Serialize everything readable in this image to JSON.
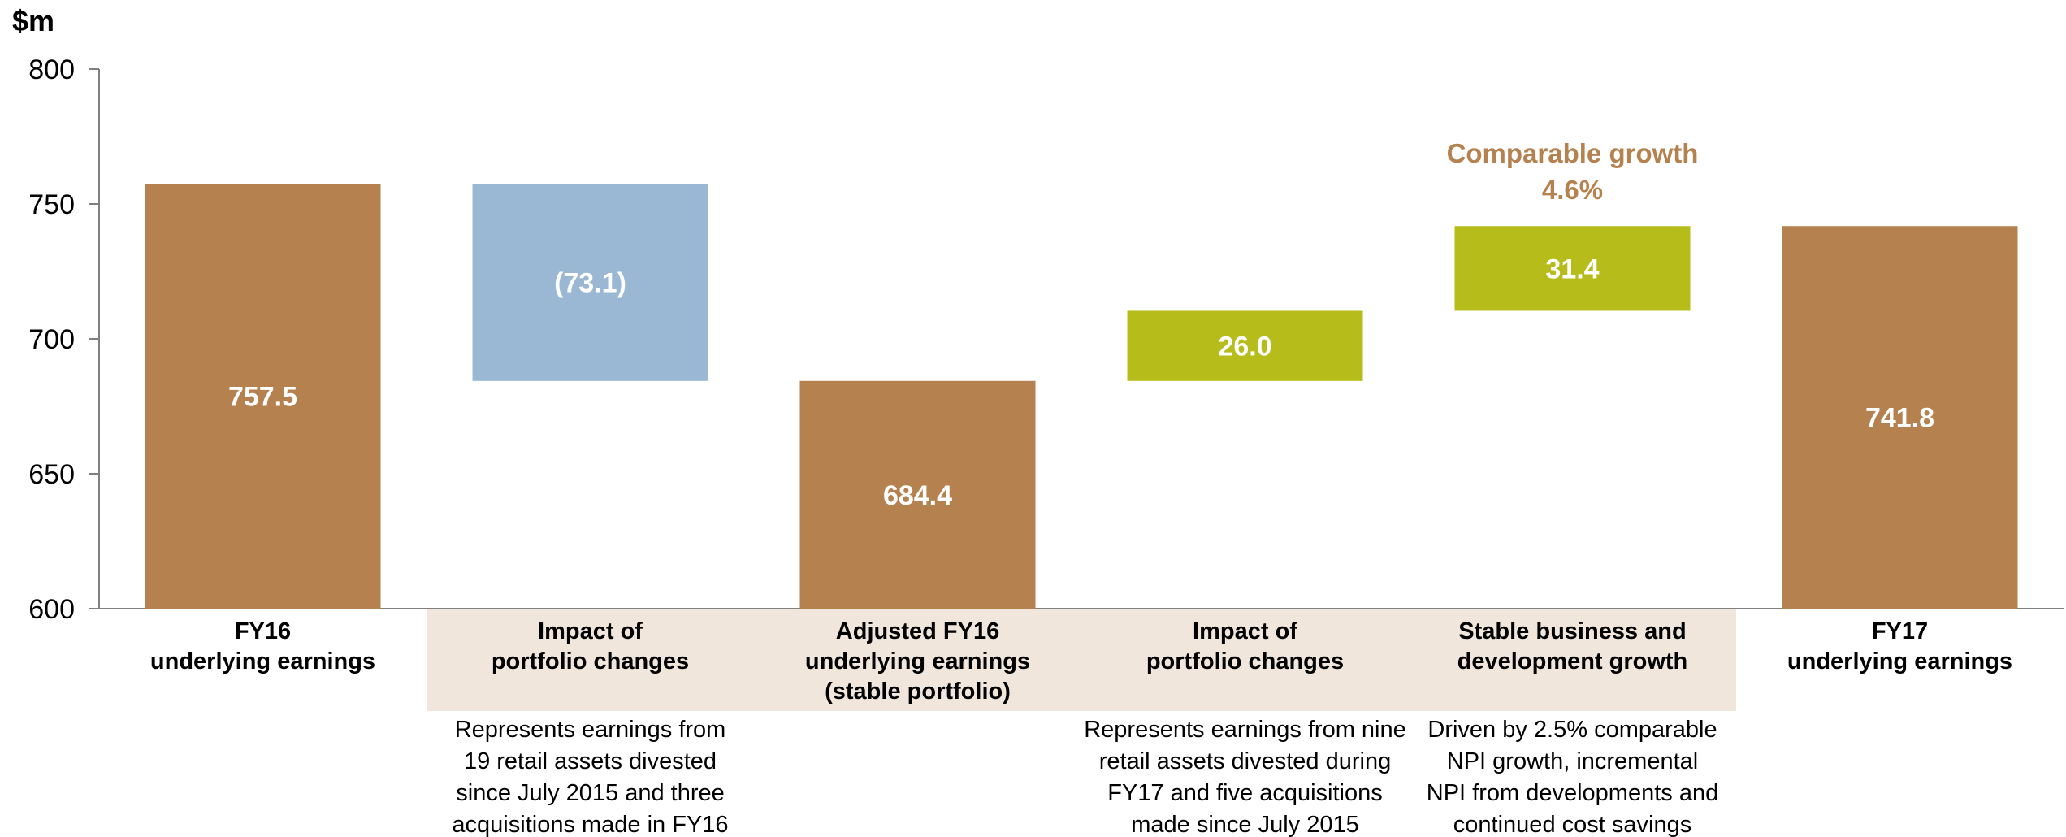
{
  "chart_data": {
    "type": "waterfall",
    "unit_label": "$m",
    "ylim": [
      600,
      800
    ],
    "yticks": [
      600,
      650,
      700,
      750,
      800
    ],
    "grid": false,
    "bars": [
      {
        "kind": "total",
        "start": 0,
        "end": 757.5,
        "label": "757.5",
        "category": [
          "FY16",
          "underlying earnings"
        ],
        "description": []
      },
      {
        "kind": "decrease",
        "start": 757.5,
        "end": 684.4,
        "label": "(73.1)",
        "category": [
          "Impact of",
          "portfolio changes"
        ],
        "description": [
          "Represents earnings from",
          "19 retail assets divested",
          "since July 2015 and three",
          "acquisitions made in FY16"
        ]
      },
      {
        "kind": "total",
        "start": 0,
        "end": 684.4,
        "label": "684.4",
        "category": [
          "Adjusted FY16",
          "underlying earnings",
          "(stable portfolio)"
        ],
        "description": []
      },
      {
        "kind": "increase",
        "start": 684.4,
        "end": 710.4,
        "label": "26.0",
        "category": [
          "Impact of",
          "portfolio changes"
        ],
        "description": [
          "Represents earnings from nine",
          "retail assets divested during",
          "FY17 and five acquisitions",
          "made since July 2015"
        ]
      },
      {
        "kind": "increase",
        "start": 710.4,
        "end": 741.8,
        "label": "31.4",
        "category": [
          "Stable business and",
          "development growth"
        ],
        "description": [
          "Driven by 2.5% comparable",
          "NPI growth, incremental",
          "NPI from developments and",
          "continued cost savings"
        ]
      },
      {
        "kind": "total",
        "start": 0,
        "end": 741.8,
        "label": "741.8",
        "category": [
          "FY17",
          "underlying earnings"
        ],
        "description": []
      }
    ],
    "annotation": {
      "lines": [
        "Comparable growth",
        "4.6%"
      ],
      "above_bar": 4
    },
    "highlight_band": {
      "from_bar": 1,
      "to_bar": 4
    },
    "colors": {
      "total": "#B5824F",
      "decrease": "#9AB8D3",
      "increase": "#B6BD1A",
      "annotation": "#B5824F",
      "band": "#F0E6DC",
      "axis": "#808080"
    }
  }
}
